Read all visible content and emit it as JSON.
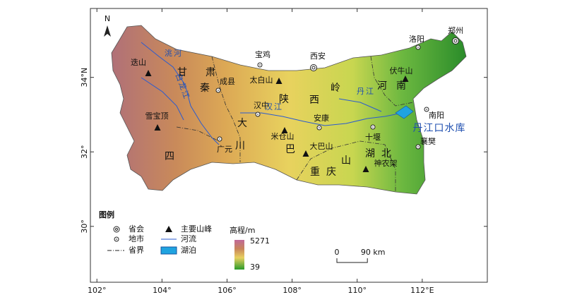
{
  "map": {
    "north": "N",
    "xlim": [
      101.8,
      114
    ],
    "ylim": [
      28.5,
      35.85
    ],
    "lon_ticks": [
      {
        "value": 102,
        "label": "102°"
      },
      {
        "value": 104,
        "label": "104°"
      },
      {
        "value": 106,
        "label": "106°"
      },
      {
        "value": 108,
        "label": "108°"
      },
      {
        "value": 110,
        "label": "110°"
      },
      {
        "value": 112,
        "label": "112°E"
      }
    ],
    "lat_ticks": [
      {
        "value": 30,
        "label": "30°"
      },
      {
        "value": 32,
        "label": "32°"
      },
      {
        "value": 34,
        "label": "34°N"
      }
    ],
    "capitals": [
      "郑州",
      "西安"
    ],
    "cities": [
      "宝鸡",
      "洛阳",
      "成县",
      "汉中",
      "广元",
      "安康",
      "十堰",
      "南阳",
      "襄樊"
    ],
    "peaks": [
      "迭山",
      "雪宝顶",
      "太白山",
      "米仓山",
      "大巴山",
      "神农架",
      "伏牛山"
    ],
    "rivers": [
      "洮河",
      "白龙江",
      "汉江",
      "丹江"
    ],
    "lake": "丹江口水库",
    "regions": [
      "甘肃",
      "秦岭",
      "陕西",
      "河南",
      "大巴山",
      "四川",
      "重庆",
      "湖北"
    ]
  },
  "legend": {
    "title": "图例",
    "capital": "省会",
    "city": "地市",
    "border": "省界",
    "peak": "主要山峰",
    "river": "河流",
    "lake": "湖泊",
    "elevation": {
      "title": "高程/m",
      "max": 5271,
      "min": 39
    }
  },
  "scale_bar": {
    "start": 0,
    "end": {
      "value": 90,
      "label": "90 km"
    }
  }
}
